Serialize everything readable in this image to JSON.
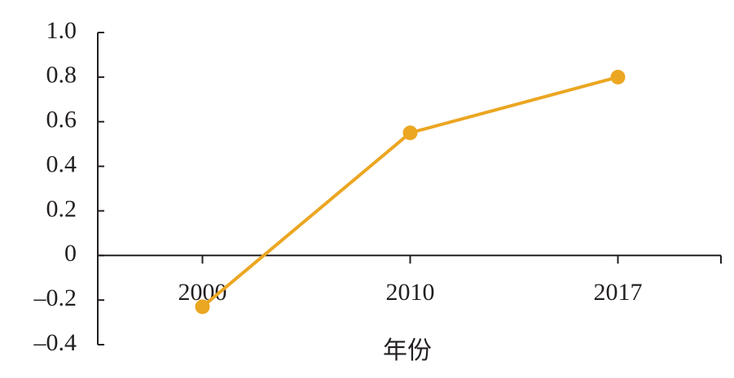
{
  "chart_data": {
    "type": "line",
    "x_label": "年份",
    "categories": [
      "2000",
      "2010",
      "2017"
    ],
    "series": [
      {
        "color": "#eba622",
        "values": [
          -0.23,
          0.55,
          0.8
        ]
      }
    ],
    "ylim": [
      -0.4,
      1
    ],
    "yticks": [
      {
        "value": 1,
        "label": "1.0"
      },
      0.8,
      0.6,
      0.4,
      0.2,
      0,
      {
        "value": -0.2,
        "label": "–0.2"
      },
      {
        "value": -0.4,
        "label": "–0.4"
      }
    ]
  }
}
